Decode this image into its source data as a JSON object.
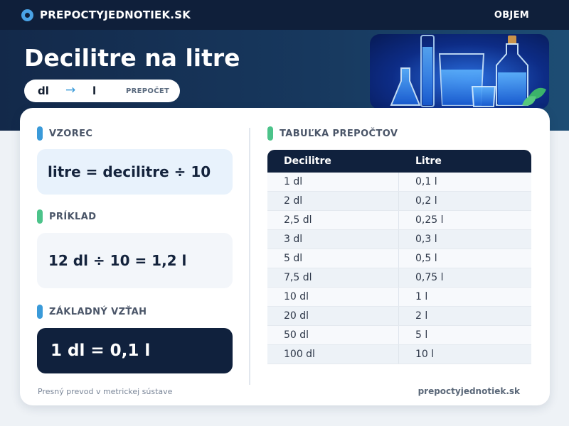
{
  "header": {
    "brand": "PREPOCTYJEDNOTIEK.SK",
    "nav_link": "OBJEM"
  },
  "hero": {
    "title": "Decilitre na litre",
    "from_unit": "dl",
    "arrow": "→",
    "to_unit": "l",
    "pill_label": "PREPOČET"
  },
  "sections": {
    "formula": {
      "heading": "VZOREC",
      "text": "litre = decilitre ÷ 10",
      "accent": "#3a9ad9"
    },
    "example": {
      "heading": "PRÍKLAD",
      "text": "12 dl ÷ 10 = 1,2 l",
      "accent": "#4cc38a"
    },
    "base": {
      "heading": "ZÁKLADNÝ VZŤAH",
      "text": "1 dl = 0,1 l",
      "accent": "#3a9ad9"
    },
    "table": {
      "heading": "TABUĽKA PREPOČTOV",
      "accent": "#4cc38a",
      "columns": [
        "Decilitre",
        "Litre"
      ],
      "rows": [
        [
          "1 dl",
          "0,1 l"
        ],
        [
          "2 dl",
          "0,2 l"
        ],
        [
          "2,5 dl",
          "0,25 l"
        ],
        [
          "3 dl",
          "0,3 l"
        ],
        [
          "5 dl",
          "0,5 l"
        ],
        [
          "7,5 dl",
          "0,75 l"
        ],
        [
          "10 dl",
          "1 l"
        ],
        [
          "20 dl",
          "2 l"
        ],
        [
          "50 dl",
          "5 l"
        ],
        [
          "100 dl",
          "10 l"
        ]
      ]
    }
  },
  "footer": {
    "left": "Presný prevod v metrickej sústave",
    "right": "prepoctyjednotiek.sk"
  },
  "colors": {
    "navy": "#10213d",
    "blue_accent": "#3a9ad9",
    "green_accent": "#4cc38a"
  }
}
